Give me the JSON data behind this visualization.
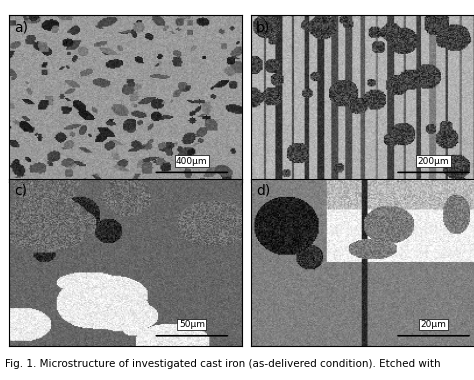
{
  "caption": "Fig. 1. Microstructure of investigated cast iron (as-delivered condition). Etched with",
  "labels": [
    "a)",
    "b)",
    "c)",
    "d)"
  ],
  "scale_bars": [
    "400μm",
    "200μm",
    "50μm",
    "20μm"
  ],
  "background_color": "#ffffff",
  "caption_fontsize": 7.5,
  "label_fontsize": 10,
  "scalebar_fontsize": 6.5,
  "fig_width": 4.74,
  "fig_height": 3.8
}
